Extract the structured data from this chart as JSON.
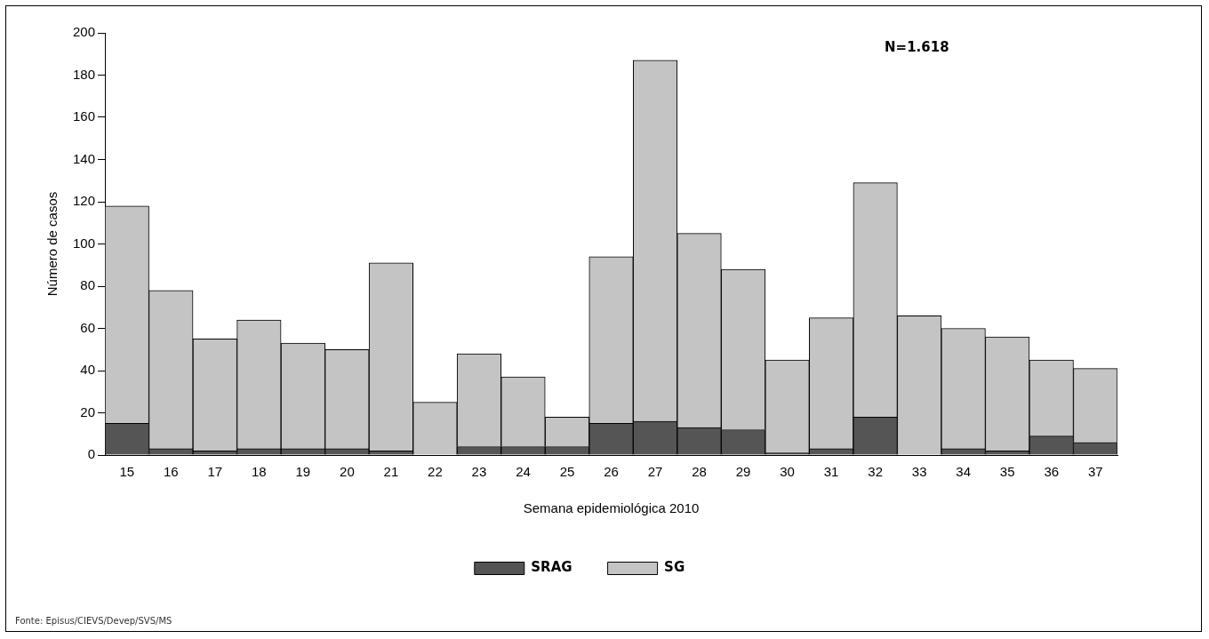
{
  "chart_data": {
    "type": "bar",
    "xlabel": "Semana epidemiológica 2010",
    "ylabel": "Número de casos",
    "categories": [
      "15",
      "16",
      "17",
      "18",
      "19",
      "20",
      "21",
      "22",
      "23",
      "24",
      "25",
      "26",
      "27",
      "28",
      "29",
      "30",
      "31",
      "32",
      "33",
      "34",
      "35",
      "36",
      "37"
    ],
    "series": [
      {
        "name": "SRAG",
        "color": "#555555",
        "values": [
          15,
          3,
          2,
          3,
          3,
          3,
          2,
          0,
          4,
          4,
          4,
          15,
          16,
          13,
          12,
          1,
          3,
          18,
          0,
          3,
          2,
          9,
          6
        ]
      },
      {
        "name": "SG",
        "color": "#c4c4c4",
        "values": [
          103,
          75,
          53,
          61,
          50,
          47,
          89,
          25,
          44,
          33,
          14,
          79,
          171,
          92,
          76,
          44,
          62,
          111,
          66,
          57,
          54,
          36,
          35
        ]
      }
    ],
    "stacked": true,
    "ylim": [
      0,
      200
    ],
    "yticks": [
      0,
      20,
      40,
      60,
      80,
      100,
      120,
      140,
      160,
      180,
      200
    ],
    "grid": false,
    "legend": "bottom",
    "annotations": [
      "N=1.618",
      "Fonte: Episus/CIEVS/Devep/SVS/MS"
    ]
  }
}
